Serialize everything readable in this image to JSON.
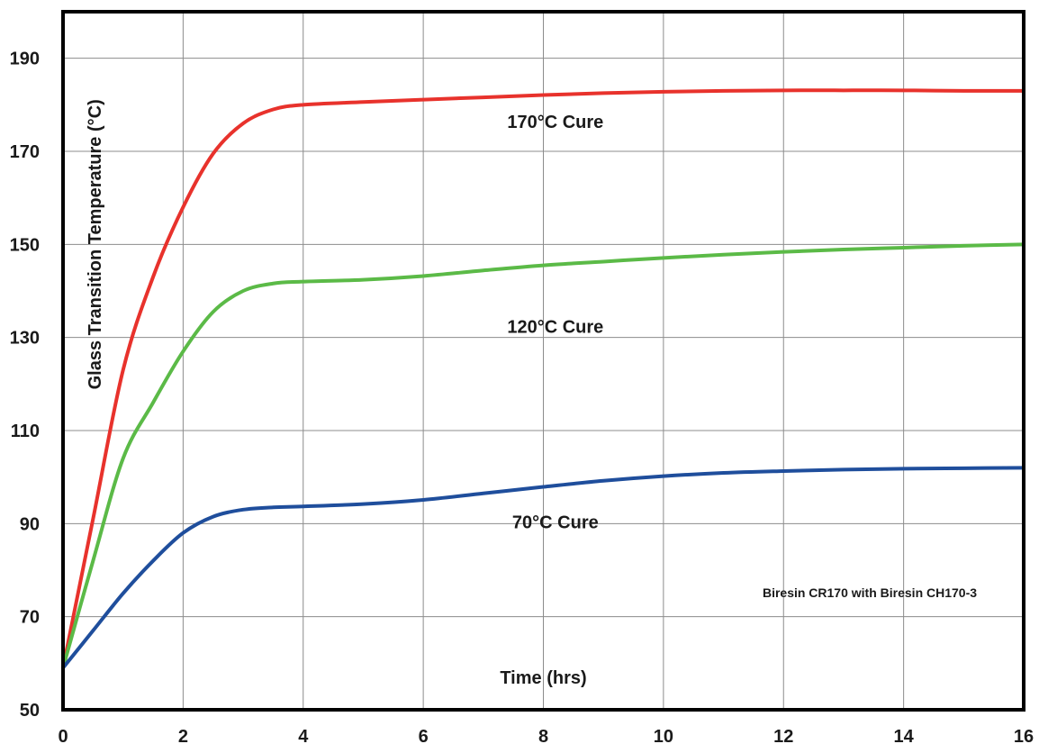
{
  "chart_data": {
    "type": "line",
    "title": "",
    "xlabel": "Time (hrs)",
    "ylabel": "Glass Transition Temperature (°C)",
    "xlim": [
      0,
      16
    ],
    "ylim": [
      50,
      200
    ],
    "x_ticks": [
      0,
      2,
      4,
      6,
      8,
      10,
      12,
      14,
      16
    ],
    "y_ticks": [
      50,
      70,
      90,
      110,
      130,
      150,
      170,
      190
    ],
    "grid": true,
    "note": "Biresin CR170 with Biresin CH170-3",
    "series": [
      {
        "name": "170°C Cure",
        "color": "#e8322c",
        "x": [
          0,
          0.5,
          1,
          1.5,
          2,
          2.5,
          3,
          3.5,
          4,
          5,
          6,
          7,
          8,
          9,
          10,
          11,
          12,
          13,
          14,
          15,
          16
        ],
        "y": [
          59,
          91,
          123,
          143,
          158,
          169.5,
          176,
          179,
          180,
          180.6,
          181.1,
          181.6,
          182.1,
          182.5,
          182.8,
          183,
          183.1,
          183.1,
          183.1,
          183,
          183
        ]
      },
      {
        "name": "120°C Cure",
        "color": "#5bba47",
        "x": [
          0,
          0.5,
          1,
          1.5,
          2,
          2.5,
          3,
          3.5,
          4,
          5,
          6,
          7,
          8,
          9,
          10,
          11,
          12,
          13,
          14,
          15,
          16
        ],
        "y": [
          59,
          82,
          104,
          116,
          127,
          135.5,
          140,
          141.6,
          142,
          142.4,
          143.2,
          144.4,
          145.5,
          146.3,
          147.1,
          147.8,
          148.4,
          148.9,
          149.3,
          149.7,
          150
        ]
      },
      {
        "name": "70°C Cure",
        "color": "#1f4e9c",
        "x": [
          0,
          0.5,
          1,
          1.5,
          2,
          2.5,
          3,
          3.5,
          4,
          5,
          6,
          7,
          8,
          9,
          10,
          11,
          12,
          13,
          14,
          15,
          16
        ],
        "y": [
          59,
          67,
          75,
          82,
          88,
          91.5,
          93,
          93.5,
          93.7,
          94.2,
          95.1,
          96.5,
          97.9,
          99.2,
          100.2,
          100.9,
          101.3,
          101.6,
          101.8,
          101.9,
          102
        ]
      }
    ],
    "annotations": [
      {
        "text": "170°C Cure",
        "x": 8.2,
        "y": 175
      },
      {
        "text": "120°C Cure",
        "x": 8.2,
        "y": 131
      },
      {
        "text": "70°C Cure",
        "x": 8.2,
        "y": 89
      }
    ],
    "xlabel_position": {
      "x": 8.0,
      "y": 57
    }
  }
}
